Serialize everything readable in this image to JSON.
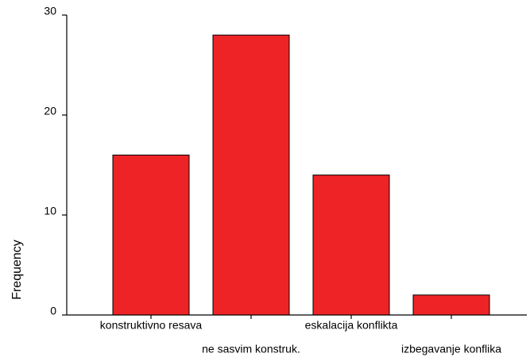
{
  "chart_data": {
    "type": "bar",
    "y_label": "Frequency",
    "categories": [
      "konstruktivno resava",
      "ne sasvim konstruk.",
      "eskalacija konflikta",
      "izbegavanje konflika"
    ],
    "values": [
      16,
      28,
      14,
      2
    ],
    "color": "#ee2326",
    "ylim": [
      0,
      30
    ],
    "yticks": [
      0,
      10,
      20,
      30
    ],
    "grid": false
  }
}
